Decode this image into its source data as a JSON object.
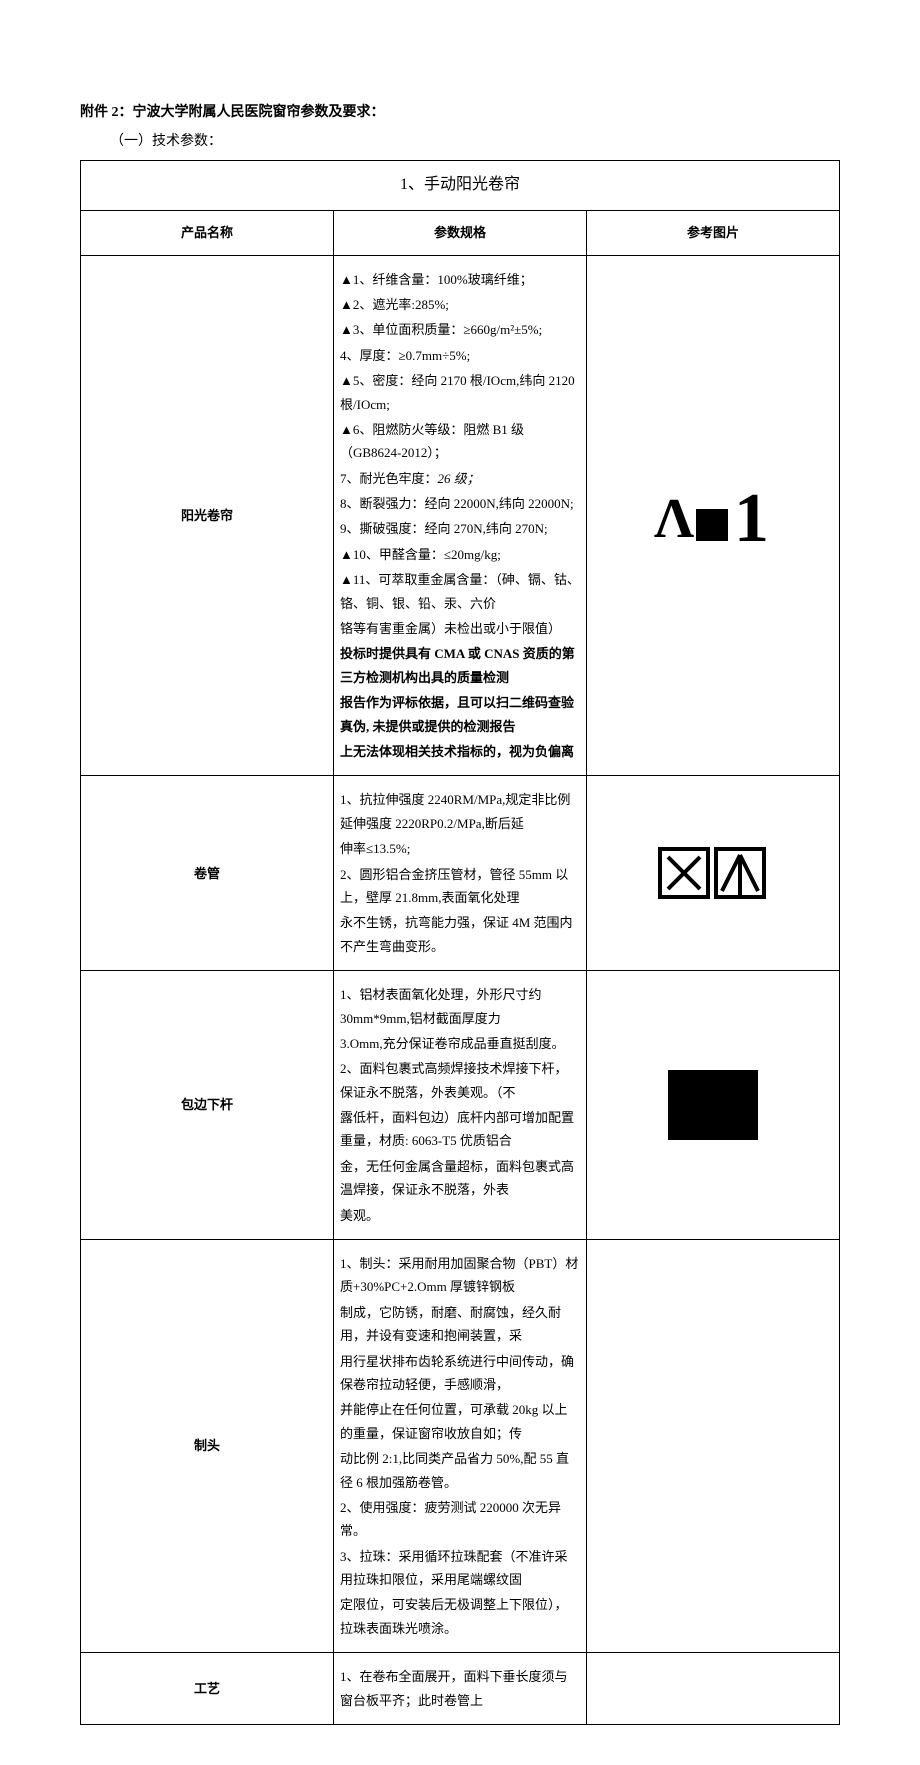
{
  "doc": {
    "title": "附件 2：宁波大学附属人民医院窗帘参数及要求：",
    "subtitle": "（一）技术参数：",
    "section_header": "1、手动阳光卷帘",
    "headers": {
      "name": "产品名称",
      "spec": "参数规格",
      "img": "参考图片"
    },
    "rows": [
      {
        "name": "阳光卷帘",
        "lines": [
          "▲1、纤维含量：100%玻璃纤维；",
          "▲2、遮光率:285%;",
          "▲3、单位面积质量：≥660g/m²±5%;",
          "4、厚度：≥0.7mm÷5%;",
          "▲5、密度：经向 2170 根/IOcm,纬向 2120 根/IOcm;",
          "▲6、阻燃防火等级：阻燃 B1 级 （GB8624-2012）；"
        ],
        "line_italic": "7、耐光色牢度：26 级；",
        "lines2": [
          "8、断裂强力：经向 22000N,纬向 22000N;",
          "9、撕破强度：经向 270N,纬向 270N;",
          "▲10、甲醛含量：≤20mg/kg;",
          "▲11、可萃取重金属含量：（砷、镉、钴、铬、铜、银、铅、汞、六价",
          "铬等有害重金属）未检出或小于限值）"
        ],
        "bold_lines": [
          "投标时提供具有 CMA 或 CNAS 资质的第三方检测机构出具的质量检测",
          "报告作为评标依据，且可以扫二维码查验真伪, 未提供或提供的检测报告",
          "上无法体现相关技术指标的，视为负偏离"
        ],
        "img_type": "lambda"
      },
      {
        "name": "卷管",
        "lines": [
          "1、抗拉伸强度 2240RM/MPa,规定非比例延伸强度 2220RP0.2/MPa,断后延",
          "伸率≤13.5%;",
          "2、圆形铝合金挤压管材，管径 55mm 以上，壁厚 21.8mm,表面氧化处理",
          "永不生锈，抗弯能力强，保证 4M 范围内不产生弯曲变形。"
        ],
        "img_type": "boxes"
      },
      {
        "name": "包边下杆",
        "lines": [
          "1、铝材表面氧化处理，外形尺寸约 30mm*9mm,铝材截面厚度力",
          "3.Omm,充分保证卷帘成品垂直挺刮度。",
          "2、面料包裹式高频焊接技术焊接下杆，保证永不脱落，外表美观。（不",
          "露低杆，面料包边）底杆内部可增加配置重量，材质: 6063-T5 优质铝合",
          "金，无任何金属含量超标，面料包裹式高温焊接，保证永不脱落，外表",
          "美观。"
        ],
        "img_type": "blackbox"
      },
      {
        "name": "制头",
        "lines": [
          "1、制头：采用耐用加固聚合物（PBT）材质+30%PC+2.Omm 厚镀锌钢板",
          "制成，它防锈，耐磨、耐腐蚀，经久耐用，并设有变速和抱闸装置，采",
          "用行星状排布齿轮系统进行中间传动，确保卷帘拉动轻便，手感顺滑，",
          "并能停止在任何位置，可承载 20kg 以上的重量，保证窗帘收放自如；传",
          "动比例 2:1,比同类产品省力 50%,配 55 直径 6 根加强筋卷管。",
          "2、使用强度：疲劳测试 220000 次无异常。",
          "3、拉珠：采用循环拉珠配套（不准许采用拉珠扣限位，采用尾端螺纹固",
          "定限位，可安装后无极调整上下限位），拉珠表面珠光喷涂。"
        ],
        "img_type": "none"
      },
      {
        "name": "工艺",
        "lines": [
          "1、在卷布全面展开，面料下垂长度须与窗台板平齐；此时卷管上"
        ],
        "img_type": "none"
      }
    ]
  }
}
